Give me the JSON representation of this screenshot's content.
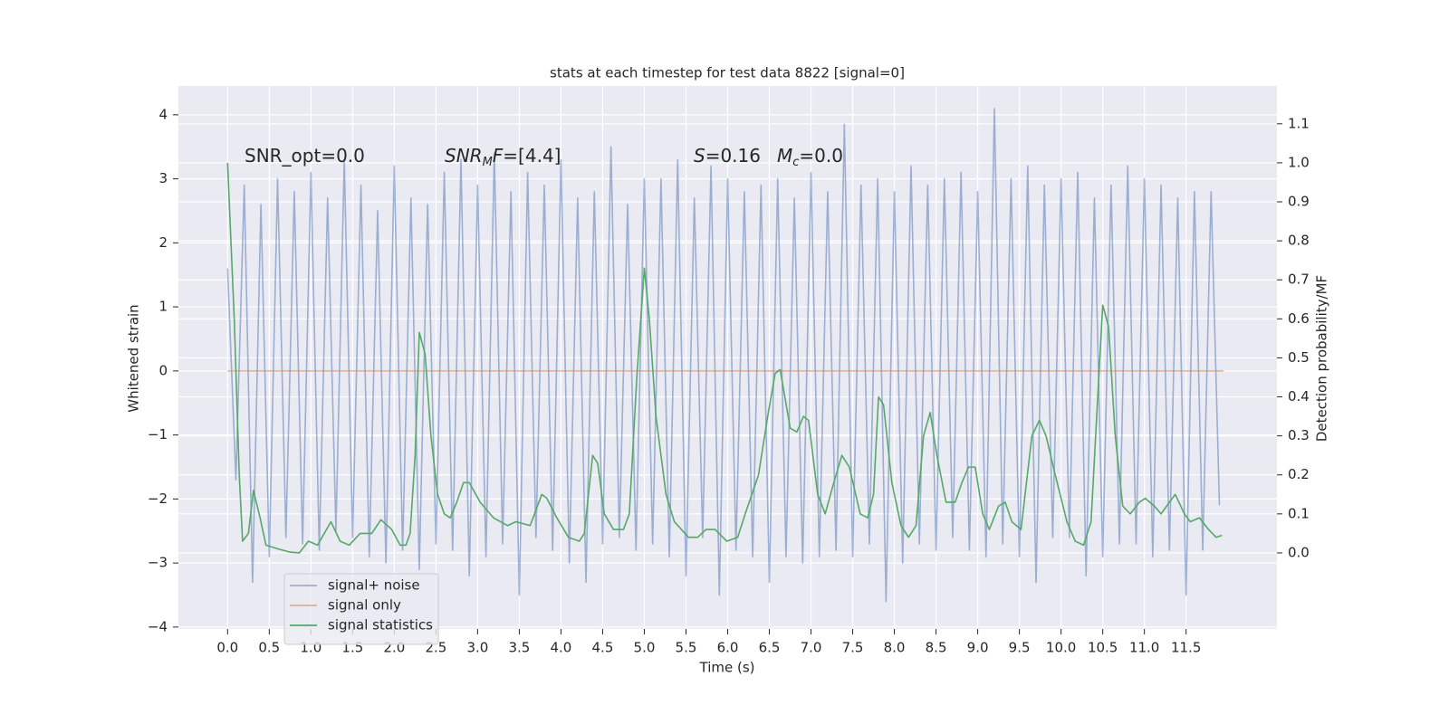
{
  "chart_data": {
    "type": "line",
    "title": "stats at each timestep for test data 8822 [signal=0]",
    "xlabel": "Time (s)",
    "ylabel": "Whitened strain",
    "y2label": "Detection probability/MF",
    "xlim": [
      -0.59,
      12.59
    ],
    "ylim": [
      -4.03,
      4.45
    ],
    "y2lim": [
      -0.195,
      1.197
    ],
    "xticks": [
      {
        "value": 0,
        "label": "0.0"
      },
      0.5,
      {
        "value": 1,
        "label": "1.0"
      },
      1.5,
      {
        "value": 2,
        "label": "2.0"
      },
      2.5,
      {
        "value": 3,
        "label": "3.0"
      },
      3.5,
      {
        "value": 4,
        "label": "4.0"
      },
      4.5,
      {
        "value": 5,
        "label": "5.0"
      },
      5.5,
      {
        "value": 6,
        "label": "6.0"
      },
      6.5,
      {
        "value": 7,
        "label": "7.0"
      },
      7.5,
      {
        "value": 8,
        "label": "8.0"
      },
      8.5,
      {
        "value": 9,
        "label": "9.0"
      },
      9.5,
      {
        "value": 10,
        "label": "10.0"
      },
      10.5,
      {
        "value": 11,
        "label": "11.0"
      },
      11.5
    ],
    "yticks": [
      {
        "value": -4,
        "label": "−4"
      },
      {
        "value": -3,
        "label": "−3"
      },
      {
        "value": -2,
        "label": "−2"
      },
      {
        "value": -1,
        "label": "−1"
      },
      0,
      1,
      2,
      3,
      4
    ],
    "y2ticks": [
      {
        "value": 0,
        "label": "0.0"
      },
      0.1,
      0.2,
      0.3,
      0.4,
      0.5,
      0.6,
      0.7,
      0.8,
      0.9,
      {
        "value": 1,
        "label": "1.0"
      },
      1.1
    ],
    "grid": true,
    "legend": "lower left",
    "annotations": [
      {
        "parts": [
          {
            "text": "SNR_opt=0.0"
          }
        ]
      },
      {
        "parts": [
          {
            "text": "SNR",
            "style": "italic"
          },
          {
            "text": "M",
            "style": "sub"
          },
          {
            "text": "F",
            "style": "italic"
          },
          {
            "text": "=[4.4]"
          }
        ]
      },
      {
        "parts": [
          {
            "text": "S",
            "style": "italic"
          },
          {
            "text": "=0.16"
          }
        ]
      },
      {
        "parts": [
          {
            "text": "M",
            "style": "italic"
          },
          {
            "text": "c",
            "style": "sub"
          },
          {
            "text": "=0.0"
          }
        ]
      }
    ],
    "series": [
      {
        "name": "signal+ noise",
        "color": "#4c72b0",
        "opacity": 0.5,
        "axis": "y",
        "x": [
          0.0,
          0.1,
          0.2,
          0.3,
          0.4,
          0.5,
          0.6,
          0.7,
          0.8,
          0.9,
          1.0,
          1.1,
          1.2,
          1.3,
          1.4,
          1.5,
          1.6,
          1.7,
          1.8,
          1.9,
          2.0,
          2.1,
          2.2,
          2.3,
          2.4,
          2.5,
          2.6,
          2.7,
          2.8,
          2.9,
          3.0,
          3.1,
          3.2,
          3.3,
          3.4,
          3.5,
          3.6,
          3.7,
          3.8,
          3.9,
          4.0,
          4.1,
          4.2,
          4.3,
          4.4,
          4.5,
          4.6,
          4.7,
          4.8,
          4.9,
          5.0,
          5.1,
          5.2,
          5.3,
          5.4,
          5.5,
          5.6,
          5.7,
          5.8,
          5.9,
          6.0,
          6.1,
          6.2,
          6.3,
          6.4,
          6.5,
          6.6,
          6.7,
          6.8,
          6.9,
          7.0,
          7.1,
          7.2,
          7.3,
          7.4,
          7.5,
          7.6,
          7.7,
          7.8,
          7.9,
          8.0,
          8.1,
          8.2,
          8.3,
          8.4,
          8.5,
          8.6,
          8.7,
          8.8,
          8.9,
          9.0,
          9.1,
          9.2,
          9.3,
          9.4,
          9.5,
          9.6,
          9.7,
          9.8,
          9.9,
          10.0,
          10.1,
          10.2,
          10.3,
          10.4,
          10.5,
          10.6,
          10.7,
          10.8,
          10.9,
          11.0,
          11.1,
          11.2,
          11.3,
          11.4,
          11.5,
          11.6,
          11.7,
          11.8,
          11.9
        ],
        "values": [
          1.6,
          -1.7,
          2.9,
          -3.3,
          2.6,
          -2.9,
          3.0,
          -2.6,
          2.8,
          -2.7,
          3.1,
          -2.8,
          2.7,
          -2.5,
          3.3,
          -2.6,
          2.9,
          -2.9,
          2.5,
          -3.0,
          3.2,
          -2.8,
          2.7,
          -3.1,
          2.6,
          -2.7,
          3.1,
          -2.8,
          3.3,
          -3.2,
          2.9,
          -2.9,
          3.4,
          -2.7,
          2.8,
          -3.5,
          3.1,
          -2.6,
          2.9,
          -2.8,
          3.3,
          -3.0,
          2.7,
          -3.3,
          2.8,
          -2.7,
          3.5,
          -2.6,
          2.6,
          -2.8,
          3.0,
          -2.7,
          3.0,
          -2.9,
          3.3,
          -3.2,
          2.7,
          -2.6,
          3.2,
          -3.5,
          3.0,
          -2.8,
          2.8,
          -2.9,
          2.9,
          -3.3,
          3.0,
          -2.9,
          2.7,
          -3.0,
          3.1,
          -2.9,
          2.8,
          -2.8,
          3.85,
          -2.9,
          2.9,
          -2.7,
          3.0,
          -3.6,
          2.8,
          -3.0,
          3.2,
          -2.7,
          2.9,
          -2.8,
          3.0,
          -2.6,
          3.1,
          -2.8,
          2.8,
          -2.9,
          4.1,
          -2.7,
          3.0,
          -2.9,
          3.2,
          -3.3,
          2.9,
          -2.6,
          3.0,
          -2.6,
          3.1,
          -3.2,
          2.7,
          -2.9,
          2.9,
          -2.7,
          3.2,
          -2.7,
          3.0,
          -2.9,
          2.9,
          -2.8,
          2.7,
          -3.5,
          2.8,
          -2.8,
          2.8,
          -2.1
        ]
      },
      {
        "name": "signal only",
        "color": "#dd8452",
        "opacity": 0.6,
        "axis": "y",
        "x": [
          0.0,
          11.95
        ],
        "values": [
          0,
          0
        ]
      },
      {
        "name": "signal statistics",
        "color": "#55a868",
        "opacity": 1,
        "axis": "y2",
        "x": [
          0.0,
          0.08,
          0.14,
          0.18,
          0.25,
          0.31,
          0.39,
          0.46,
          0.61,
          0.75,
          0.86,
          0.97,
          1.08,
          1.24,
          1.35,
          1.46,
          1.59,
          1.73,
          1.84,
          1.97,
          2.07,
          2.14,
          2.19,
          2.25,
          2.3,
          2.37,
          2.44,
          2.52,
          2.6,
          2.67,
          2.75,
          2.83,
          2.9,
          3.03,
          3.19,
          3.36,
          3.46,
          3.63,
          3.77,
          3.83,
          3.95,
          4.09,
          4.22,
          4.28,
          4.38,
          4.44,
          4.52,
          4.63,
          4.75,
          4.82,
          4.91,
          5.0,
          5.06,
          5.14,
          5.26,
          5.36,
          5.53,
          5.64,
          5.74,
          5.85,
          5.99,
          6.12,
          6.21,
          6.37,
          6.48,
          6.57,
          6.63,
          6.75,
          6.83,
          6.91,
          6.97,
          7.08,
          7.17,
          7.26,
          7.37,
          7.46,
          7.59,
          7.68,
          7.75,
          7.81,
          7.87,
          7.97,
          8.08,
          8.17,
          8.26,
          8.35,
          8.43,
          8.51,
          8.62,
          8.73,
          8.81,
          8.89,
          8.97,
          9.06,
          9.14,
          9.25,
          9.33,
          9.41,
          9.52,
          9.65,
          9.74,
          9.82,
          9.93,
          10.07,
          10.17,
          10.27,
          10.36,
          10.44,
          10.5,
          10.57,
          10.65,
          10.74,
          10.83,
          10.94,
          11.01,
          11.12,
          11.2,
          11.3,
          11.37,
          11.48,
          11.55,
          11.66,
          11.77,
          11.86,
          11.93
        ],
        "values": [
          1.0,
          0.6,
          0.2,
          0.03,
          0.05,
          0.16,
          0.09,
          0.02,
          0.01,
          0.002,
          0.0,
          0.03,
          0.02,
          0.08,
          0.03,
          0.02,
          0.05,
          0.05,
          0.085,
          0.06,
          0.02,
          0.02,
          0.05,
          0.25,
          0.565,
          0.51,
          0.3,
          0.15,
          0.1,
          0.09,
          0.13,
          0.18,
          0.18,
          0.13,
          0.09,
          0.07,
          0.08,
          0.07,
          0.15,
          0.14,
          0.09,
          0.04,
          0.03,
          0.05,
          0.25,
          0.23,
          0.1,
          0.06,
          0.06,
          0.1,
          0.45,
          0.73,
          0.6,
          0.35,
          0.15,
          0.08,
          0.04,
          0.04,
          0.06,
          0.06,
          0.03,
          0.04,
          0.1,
          0.2,
          0.35,
          0.46,
          0.47,
          0.32,
          0.31,
          0.35,
          0.34,
          0.15,
          0.1,
          0.17,
          0.25,
          0.22,
          0.1,
          0.09,
          0.15,
          0.4,
          0.38,
          0.18,
          0.07,
          0.04,
          0.07,
          0.3,
          0.36,
          0.25,
          0.13,
          0.13,
          0.18,
          0.22,
          0.22,
          0.1,
          0.06,
          0.12,
          0.13,
          0.08,
          0.06,
          0.3,
          0.34,
          0.3,
          0.2,
          0.08,
          0.03,
          0.02,
          0.08,
          0.4,
          0.635,
          0.58,
          0.3,
          0.12,
          0.1,
          0.13,
          0.14,
          0.12,
          0.1,
          0.13,
          0.15,
          0.1,
          0.08,
          0.09,
          0.06,
          0.04,
          0.045
        ]
      }
    ]
  }
}
